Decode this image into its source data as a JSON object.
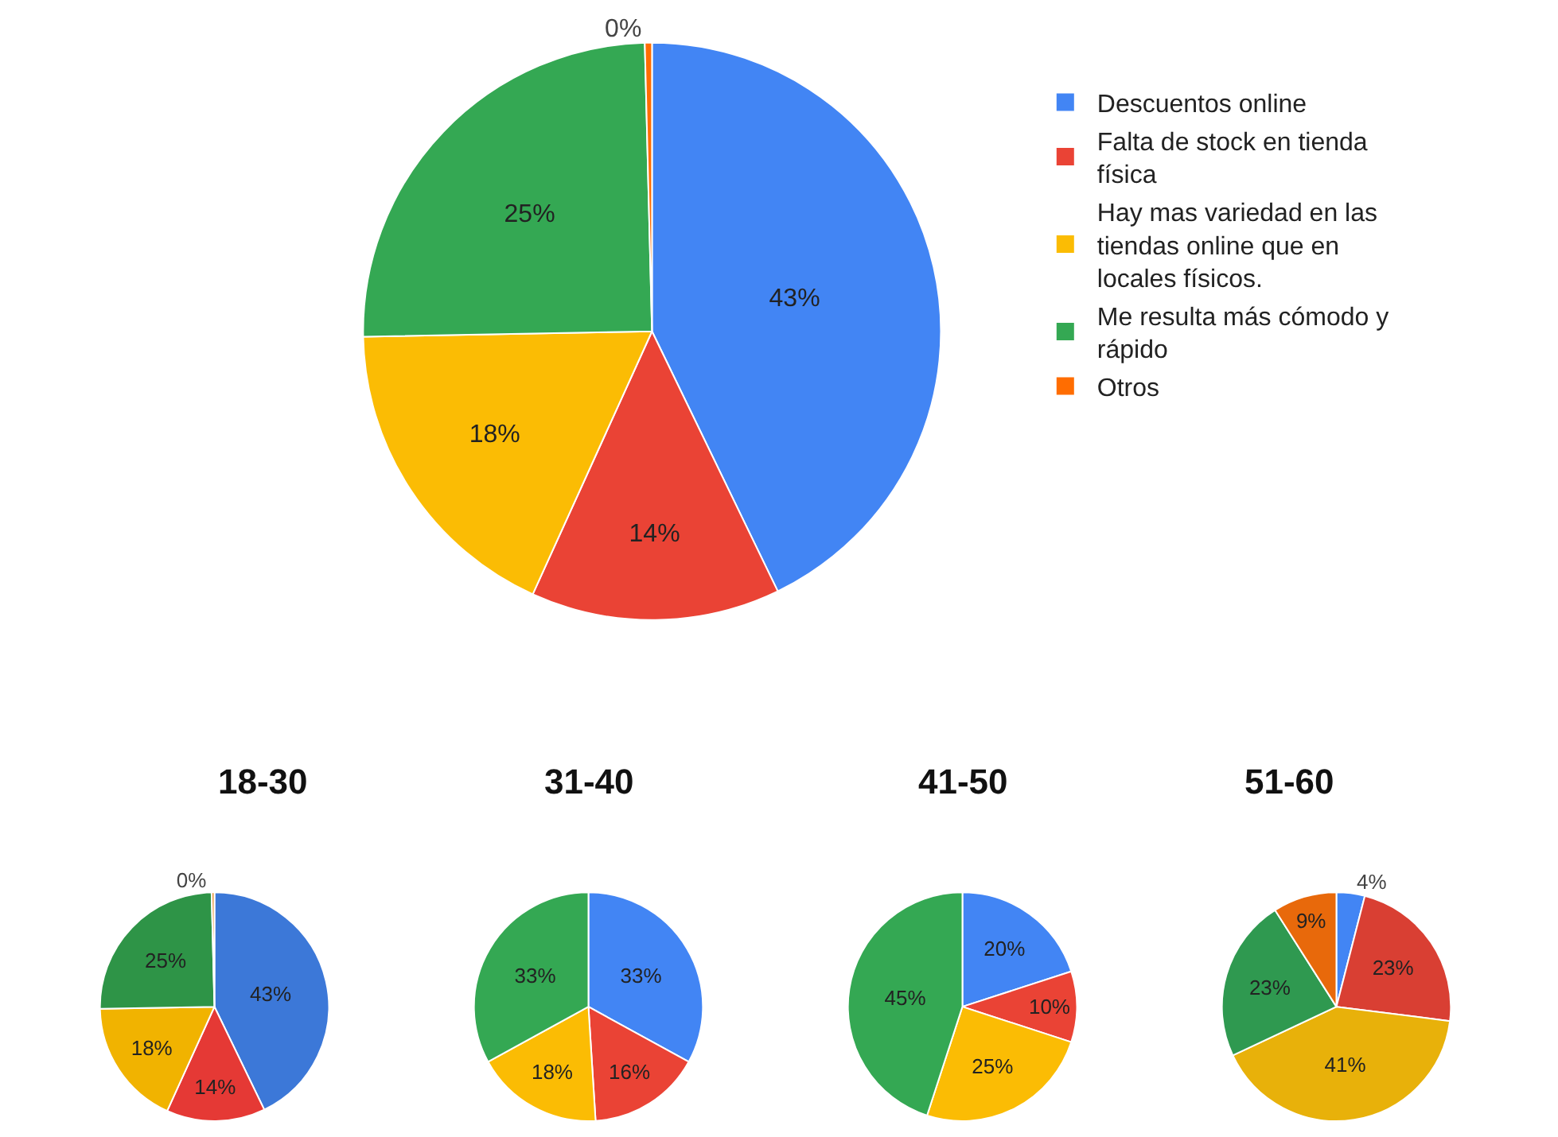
{
  "chart_data": [
    {
      "type": "pie",
      "categories": [
        "Descuentos online",
        "Falta de stock en tienda física",
        "Hay mas variedad en las tiendas online que en locales físicos.",
        "Me resulta más cómodo y rápido",
        "Otros"
      ],
      "values": [
        43,
        14,
        18,
        25,
        0.4
      ],
      "value_labels": [
        "43%",
        "14%",
        "18%",
        "25%",
        "0%"
      ],
      "colors": [
        "#4285f4",
        "#ea4335",
        "#fbbc04",
        "#34a853",
        "#ff6d01"
      ],
      "legend": "right"
    },
    {
      "type": "pie",
      "title": "18-30",
      "categories": [
        null,
        null,
        null,
        null,
        null
      ],
      "values": [
        43,
        14,
        18,
        25,
        0.4
      ],
      "value_labels": [
        "43%",
        "14%",
        "18%",
        "25%",
        "0%"
      ],
      "colors": [
        "#3c78d8",
        "#e53935",
        "#f1b300",
        "#2e9447",
        "#e69138"
      ]
    },
    {
      "type": "pie",
      "title": "31-40",
      "categories": [
        null,
        null,
        null,
        null
      ],
      "values": [
        33,
        16,
        18,
        33
      ],
      "value_labels": [
        "33%",
        "16%",
        "18%",
        "33%"
      ],
      "colors": [
        "#4285f4",
        "#ea4335",
        "#fbbc04",
        "#34a853"
      ]
    },
    {
      "type": "pie",
      "title": "41-50",
      "categories": [
        null,
        null,
        null,
        null
      ],
      "values": [
        20,
        10,
        25,
        45
      ],
      "value_labels": [
        "20%",
        "10%",
        "25%",
        "45%"
      ],
      "colors": [
        "#4285f4",
        "#ea4335",
        "#fbbc04",
        "#34a853"
      ]
    },
    {
      "type": "pie",
      "title": "51-60",
      "categories": [
        null,
        null,
        null,
        null,
        null
      ],
      "values": [
        4,
        23,
        41,
        23,
        9
      ],
      "value_labels": [
        "4%",
        "23%",
        "41%",
        "23%",
        "9%"
      ],
      "colors": [
        "#4285f4",
        "#d93f33",
        "#e8b10a",
        "#2f9950",
        "#e8690b"
      ]
    }
  ]
}
